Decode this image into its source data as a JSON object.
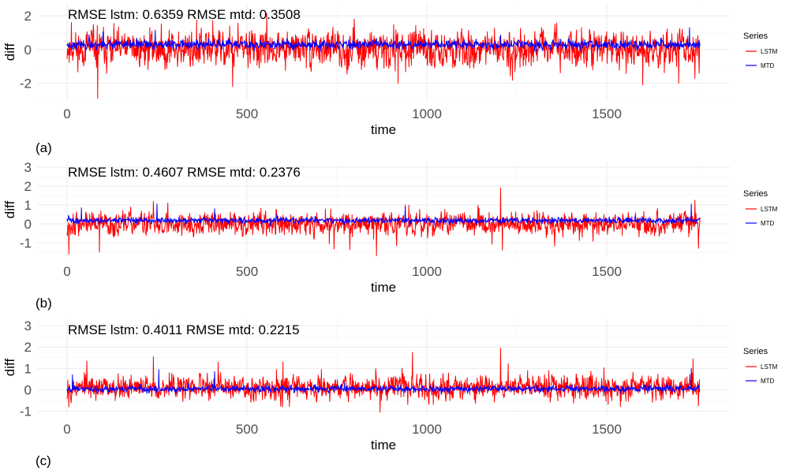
{
  "chart_data": [
    {
      "type": "line",
      "panel_label": "(a)",
      "annotation": "RMSE lstm: 0.6359 RMSE mtd: 0.3508",
      "xlabel": "time",
      "ylabel": "diff",
      "xlim": [
        0,
        1760
      ],
      "ylim": [
        -3.0,
        2.7
      ],
      "x_ticks": [
        0,
        500,
        1000,
        1500
      ],
      "y_ticks": [
        -2,
        0,
        2
      ],
      "grid": true,
      "legend": {
        "title": "Series",
        "position": "right",
        "entries": [
          "LSTM",
          "MTD"
        ]
      },
      "series": [
        {
          "name": "LSTM",
          "color": "#ff0000",
          "seed": 11,
          "amp": 0.72,
          "mean": 0.05,
          "peaks": [
            [
              85,
              -2.9
            ],
            [
              12,
              1.6
            ],
            [
              360,
              1.75
            ],
            [
              230,
              1.3
            ],
            [
              1540,
              1.05
            ],
            [
              1600,
              -2.1
            ],
            [
              1430,
              1.3
            ],
            [
              1260,
              1.25
            ],
            [
              920,
              -2.0
            ],
            [
              460,
              -2.2
            ],
            [
              1700,
              -2.0
            ],
            [
              1745,
              -1.7
            ],
            [
              130,
              1.55
            ]
          ]
        },
        {
          "name": "MTD",
          "color": "#0000ff",
          "seed": 23,
          "amp": 0.18,
          "mean": 0.3,
          "peaks": [
            [
              245,
              1.15
            ],
            [
              1730,
              1.3
            ],
            [
              100,
              1.05
            ],
            [
              1205,
              0.85
            ]
          ]
        }
      ]
    },
    {
      "type": "line",
      "panel_label": "(b)",
      "annotation": "RMSE lstm: 0.4607 RMSE mtd: 0.2376",
      "xlabel": "time",
      "ylabel": "diff",
      "xlim": [
        0,
        1760
      ],
      "ylim": [
        -1.8,
        3.3
      ],
      "x_ticks": [
        0,
        500,
        1000,
        1500
      ],
      "y_ticks": [
        -1,
        0,
        1,
        2,
        3
      ],
      "grid": true,
      "legend": {
        "title": "Series",
        "position": "right",
        "entries": [
          "LSTM",
          "MTD"
        ]
      },
      "series": [
        {
          "name": "LSTM",
          "color": "#ff0000",
          "seed": 37,
          "amp": 0.42,
          "mean": 0.0,
          "peaks": [
            [
              1205,
              1.9
            ],
            [
              1210,
              -1.4
            ],
            [
              860,
              -1.7
            ],
            [
              90,
              -1.5
            ],
            [
              1745,
              1.25
            ],
            [
              240,
              1.2
            ],
            [
              5,
              -1.6
            ],
            [
              940,
              1.0
            ],
            [
              1755,
              -1.3
            ]
          ]
        },
        {
          "name": "MTD",
          "color": "#0000ff",
          "seed": 41,
          "amp": 0.1,
          "mean": 0.18,
          "peaks": [
            [
              250,
              1.05
            ],
            [
              410,
              0.8
            ],
            [
              1735,
              1.05
            ],
            [
              940,
              0.9
            ],
            [
              40,
              0.85
            ]
          ]
        }
      ]
    },
    {
      "type": "line",
      "panel_label": "(c)",
      "annotation": "RMSE lstm: 0.4011 RMSE mtd: 0.2215",
      "xlabel": "time",
      "ylabel": "diff",
      "xlim": [
        0,
        1760
      ],
      "ylim": [
        -1.2,
        3.3
      ],
      "x_ticks": [
        0,
        500,
        1000,
        1500
      ],
      "y_ticks": [
        -1,
        0,
        1,
        2,
        3
      ],
      "grid": true,
      "legend": {
        "title": "Series",
        "position": "right",
        "entries": [
          "LSTM",
          "MTD"
        ]
      },
      "series": [
        {
          "name": "LSTM",
          "color": "#ff0000",
          "seed": 53,
          "amp": 0.38,
          "mean": 0.12,
          "peaks": [
            [
              1205,
              1.95
            ],
            [
              870,
              -1.05
            ],
            [
              240,
              1.55
            ],
            [
              960,
              1.75
            ],
            [
              55,
              1.35
            ],
            [
              1740,
              1.45
            ],
            [
              420,
              1.3
            ],
            [
              5,
              -0.8
            ],
            [
              1755,
              -0.75
            ],
            [
              600,
              1.3
            ]
          ]
        },
        {
          "name": "MTD",
          "color": "#0000ff",
          "seed": 67,
          "amp": 0.1,
          "mean": 0.05,
          "peaks": [
            [
              255,
              0.95
            ],
            [
              410,
              0.85
            ],
            [
              1735,
              1.0
            ],
            [
              15,
              0.7
            ]
          ]
        }
      ]
    }
  ]
}
